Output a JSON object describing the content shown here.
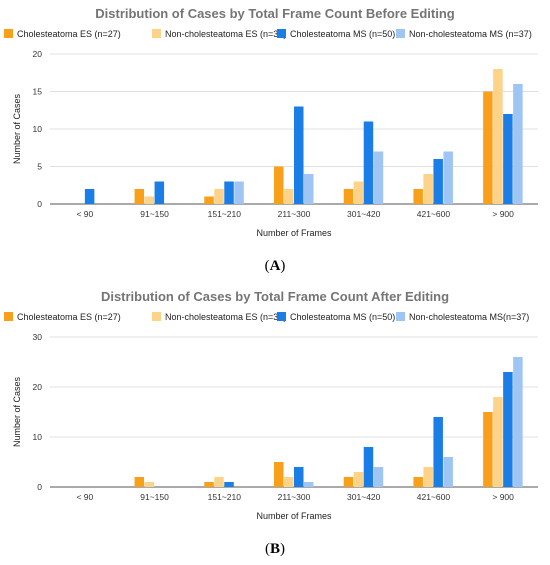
{
  "chart_data": [
    {
      "type": "bar",
      "title": "Distribution of Cases by Total Frame Count Before Editing",
      "xlabel": "Number of Frames",
      "ylabel": "Number of Cases",
      "categories": [
        "< 90",
        "91~150",
        "151~210",
        "211~300",
        "301~420",
        "421~600",
        "> 900"
      ],
      "ylim": [
        0,
        20
      ],
      "yticks": [
        0,
        5,
        10,
        15,
        20
      ],
      "grid": true,
      "legend": "top",
      "series": [
        {
          "name": "Cholesteatoma ES (n=27)",
          "color": "#f9a01b",
          "values": [
            0,
            2,
            1,
            5,
            2,
            2,
            15
          ]
        },
        {
          "name": "Non-cholesteatoma ES (n=30)",
          "color": "#fdd38a",
          "values": [
            0,
            1,
            2,
            2,
            3,
            4,
            18
          ]
        },
        {
          "name": "Cholesteatoma MS (n=50)",
          "color": "#1a7ee6",
          "values": [
            2,
            3,
            3,
            13,
            11,
            6,
            12
          ]
        },
        {
          "name": "Non-cholesteatoma MS (n=37)",
          "color": "#9fc5f4",
          "values": [
            0,
            0,
            3,
            4,
            7,
            7,
            16
          ]
        }
      ],
      "caption": "A"
    },
    {
      "type": "bar",
      "title": "Distribution of Cases by Total Frame Count  After Editing",
      "xlabel": "Number of Frames",
      "ylabel": "Number of Cases",
      "categories": [
        "< 90",
        "91~150",
        "151~210",
        "211~300",
        "301~420",
        "421~600",
        "> 900"
      ],
      "ylim": [
        0,
        30
      ],
      "yticks": [
        0,
        10,
        20,
        30
      ],
      "grid": true,
      "legend": "top",
      "series": [
        {
          "name": "Cholesteatoma ES (n=27)",
          "color": "#f9a01b",
          "values": [
            0,
            2,
            1,
            5,
            2,
            2,
            15
          ]
        },
        {
          "name": "Non-cholesteatoma ES (n=30)",
          "color": "#fdd38a",
          "values": [
            0,
            1,
            2,
            2,
            3,
            4,
            18
          ]
        },
        {
          "name": "Cholesteatoma MS (n=50)",
          "color": "#1a7ee6",
          "values": [
            0,
            0,
            1,
            4,
            8,
            14,
            23
          ]
        },
        {
          "name": "Non-cholesteatoma MS(n=37)",
          "color": "#9fc5f4",
          "values": [
            0,
            0,
            0,
            1,
            4,
            6,
            26
          ]
        }
      ],
      "caption": "B"
    }
  ]
}
